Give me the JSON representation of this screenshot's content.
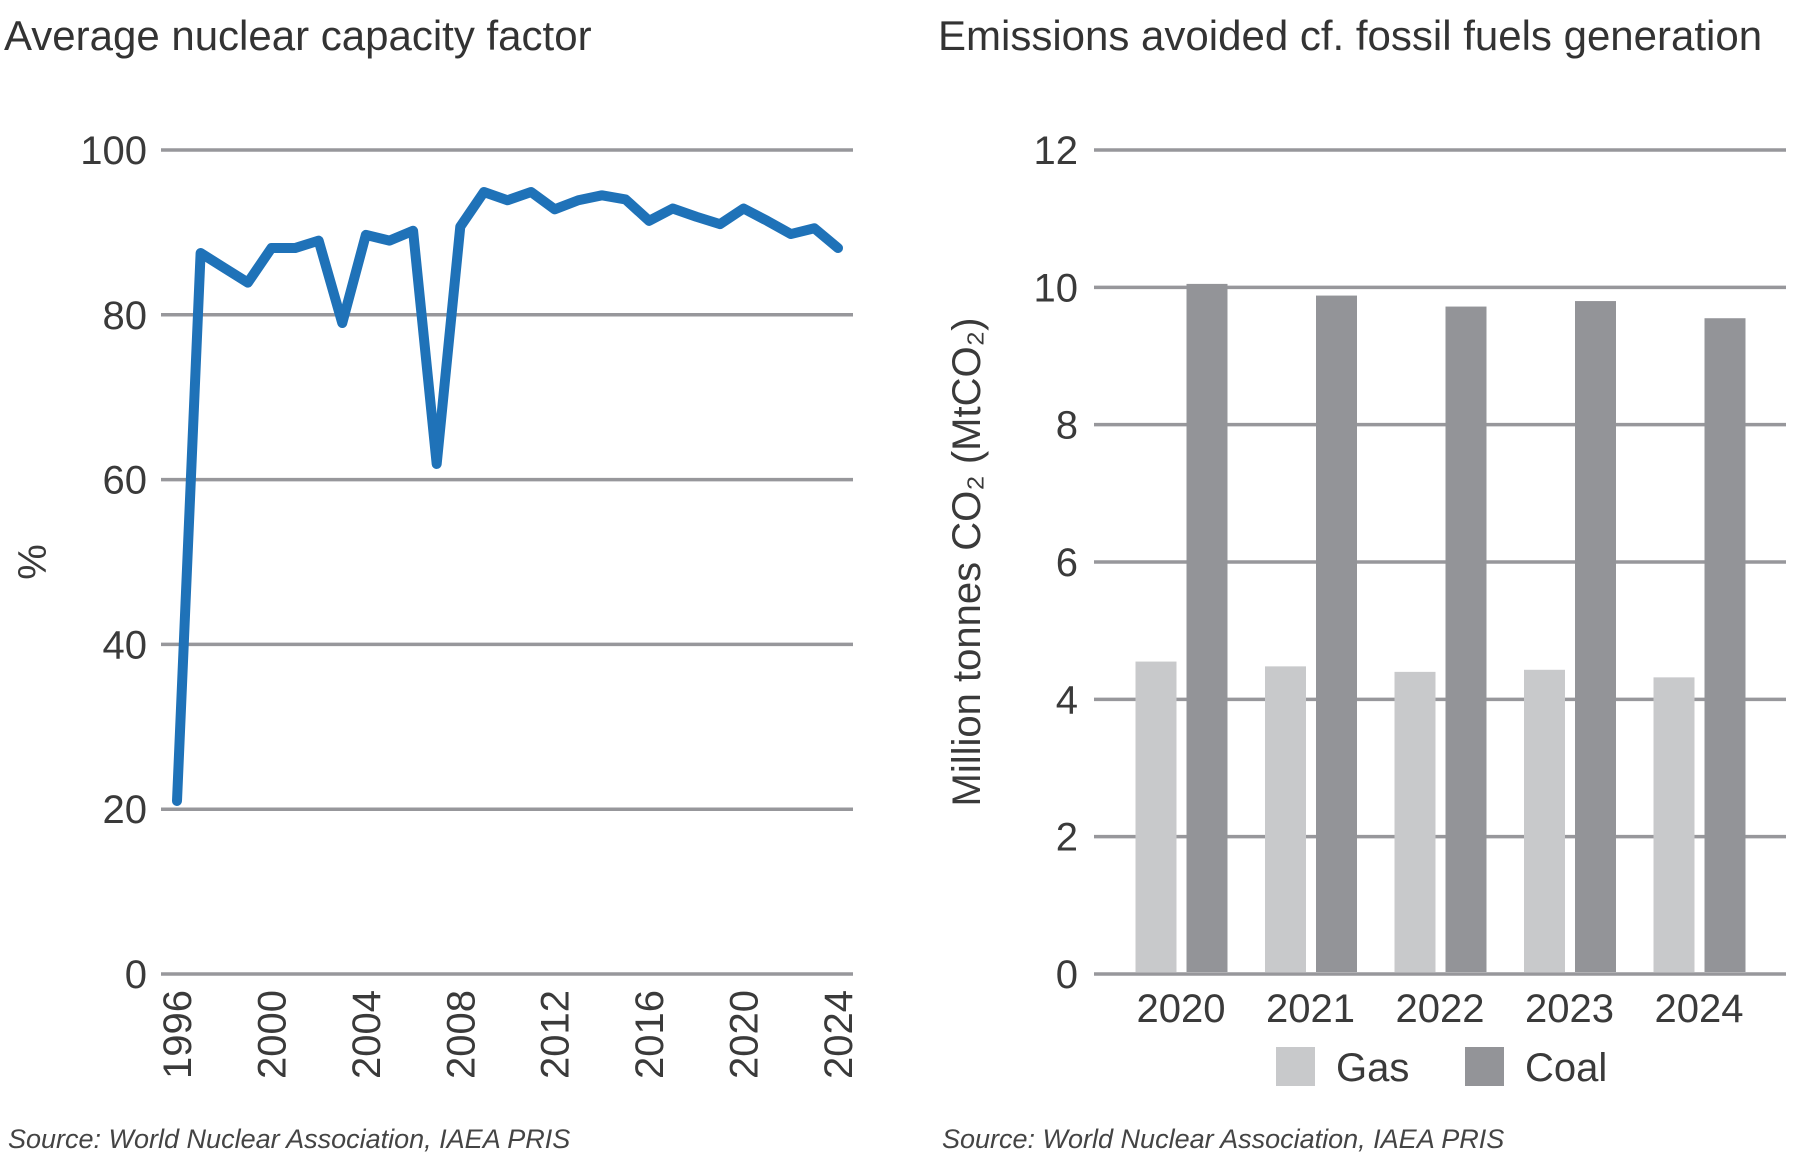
{
  "chart_data": [
    {
      "type": "line",
      "title": "Average nuclear capacity factor",
      "ylabel": "%",
      "xlabel": "",
      "ylim": [
        0,
        100
      ],
      "yticks": [
        0,
        20,
        40,
        60,
        80,
        100
      ],
      "xticks": [
        1996,
        2000,
        2004,
        2008,
        2012,
        2016,
        2020,
        2024
      ],
      "grid": true,
      "color": "#1f72b8",
      "x": [
        1996,
        1997,
        1998,
        1999,
        2000,
        2001,
        2002,
        2003,
        2004,
        2005,
        2006,
        2007,
        2008,
        2009,
        2010,
        2011,
        2012,
        2013,
        2014,
        2015,
        2016,
        2017,
        2018,
        2019,
        2020,
        2021,
        2022,
        2023,
        2024
      ],
      "y": [
        21,
        87.5,
        85.7,
        83.9,
        88.1,
        88.1,
        89,
        79,
        89.7,
        89,
        90.2,
        61.9,
        90.7,
        94.9,
        93.9,
        94.9,
        92.8,
        93.9,
        94.5,
        94,
        91.4,
        92.9,
        91.9,
        91,
        92.9,
        91.4,
        89.8,
        90.5,
        88.1
      ],
      "source": "Source: World Nuclear Association, IAEA PRIS"
    },
    {
      "type": "bar",
      "title": "Emissions avoided cf. fossil fuels generation",
      "ylabel": "Million tonnes CO₂ (MtCO₂)",
      "xlabel": "",
      "ylim": [
        0,
        12
      ],
      "yticks": [
        0,
        2,
        4,
        6,
        8,
        10,
        12
      ],
      "grid": true,
      "legend": "bottom",
      "categories": [
        "2020",
        "2021",
        "2022",
        "2023",
        "2024"
      ],
      "series": [
        {
          "name": "Gas",
          "color": "#c8c9cb",
          "values": [
            4.55,
            4.48,
            4.4,
            4.43,
            4.32
          ]
        },
        {
          "name": "Coal",
          "color": "#939498",
          "values": [
            10.05,
            9.88,
            9.72,
            9.8,
            9.55
          ]
        }
      ],
      "source": "Source: World Nuclear Association, IAEA PRIS"
    }
  ]
}
